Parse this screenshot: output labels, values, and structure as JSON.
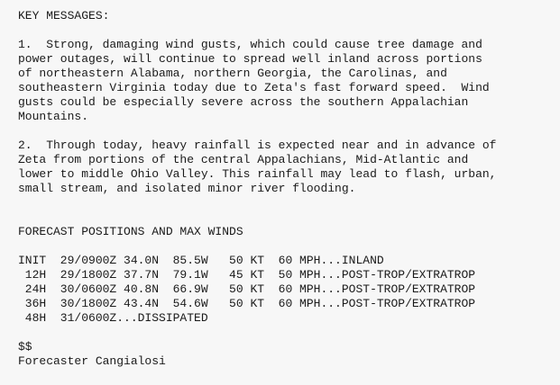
{
  "colors": {
    "background": "#f7f7f7",
    "text": "#1a1a1a"
  },
  "bulletin": {
    "key_messages": {
      "heading": "KEY MESSAGES:",
      "items": [
        "1.  Strong, damaging wind gusts, which could cause tree damage and\npower outages, will continue to spread well inland across portions\nof northeastern Alabama, northern Georgia, the Carolinas, and\nsoutheastern Virginia today due to Zeta's fast forward speed.  Wind\ngusts could be especially severe across the southern Appalachian\nMountains.",
        "2.  Through today, heavy rainfall is expected near and in advance of\nZeta from portions of the central Appalachians, Mid-Atlantic and\nlower to middle Ohio Valley. This rainfall may lead to flash, urban,\nsmall stream, and isolated minor river flooding."
      ]
    },
    "forecast": {
      "heading": "FORECAST POSITIONS AND MAX WINDS",
      "rows": [
        {
          "tau": "INIT",
          "datetime": "29/0900Z",
          "lat": "34.0N",
          "lon": "85.5W",
          "wind_kt": "50 KT",
          "wind_mph": "60 MPH",
          "status": "INLAND",
          "line": "INIT  29/0900Z 34.0N  85.5W   50 KT  60 MPH...INLAND"
        },
        {
          "tau": "12H",
          "datetime": "29/1800Z",
          "lat": "37.7N",
          "lon": "79.1W",
          "wind_kt": "45 KT",
          "wind_mph": "50 MPH",
          "status": "POST-TROP/EXTRATROP",
          "line": " 12H  29/1800Z 37.7N  79.1W   45 KT  50 MPH...POST-TROP/EXTRATROP"
        },
        {
          "tau": "24H",
          "datetime": "30/0600Z",
          "lat": "40.8N",
          "lon": "66.9W",
          "wind_kt": "50 KT",
          "wind_mph": "60 MPH",
          "status": "POST-TROP/EXTRATROP",
          "line": " 24H  30/0600Z 40.8N  66.9W   50 KT  60 MPH...POST-TROP/EXTRATROP"
        },
        {
          "tau": "36H",
          "datetime": "30/1800Z",
          "lat": "43.4N",
          "lon": "54.6W",
          "wind_kt": "50 KT",
          "wind_mph": "60 MPH",
          "status": "POST-TROP/EXTRATROP",
          "line": " 36H  30/1800Z 43.4N  54.6W   50 KT  60 MPH...POST-TROP/EXTRATROP"
        },
        {
          "tau": "48H",
          "datetime": "31/0600Z",
          "status": "DISSIPATED",
          "line": " 48H  31/0600Z...DISSIPATED"
        }
      ]
    },
    "footer": {
      "delimiter": "$$",
      "forecaster": "Forecaster Cangialosi"
    }
  }
}
